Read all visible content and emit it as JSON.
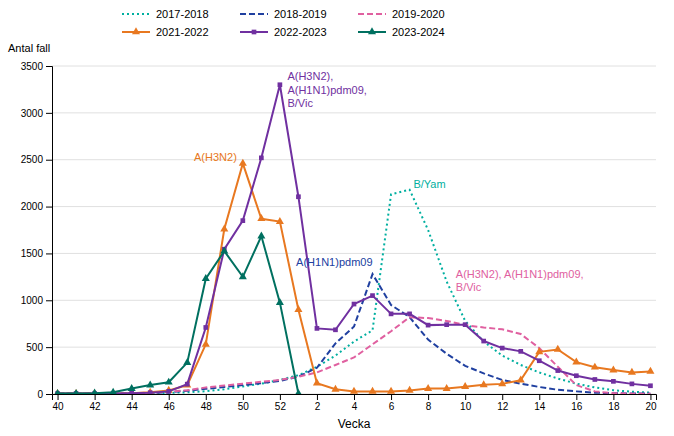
{
  "chart_data": {
    "type": "line",
    "xlabel": "Vecka",
    "ylabel": "Antal fall",
    "categories": [
      "40",
      null,
      "42",
      null,
      "44",
      null,
      "46",
      null,
      "48",
      null,
      "50",
      null,
      "52",
      null,
      "2",
      null,
      "4",
      null,
      "6",
      null,
      "8",
      null,
      "10",
      null,
      "12",
      null,
      "14",
      null,
      "16",
      null,
      "18",
      null,
      "20"
    ],
    "ylim": [
      0,
      3500
    ],
    "yticks": [
      0,
      500,
      1000,
      1500,
      2000,
      2500,
      3000,
      3500
    ],
    "grid": true,
    "legend": "top",
    "series": [
      {
        "name": "2017-2018",
        "color": "#00AFA0",
        "line_style": "dotted",
        "values": [
          5,
          5,
          5,
          5,
          8,
          10,
          12,
          18,
          30,
          50,
          80,
          110,
          150,
          200,
          290,
          410,
          560,
          680,
          2130,
          2180,
          1750,
          1200,
          780,
          560,
          410,
          310,
          230,
          165,
          110,
          70,
          40,
          25,
          15
        ]
      },
      {
        "name": "2018-2019",
        "color": "#2040A0",
        "line_style": "dashed",
        "values": [
          5,
          5,
          5,
          5,
          8,
          12,
          18,
          35,
          55,
          75,
          95,
          115,
          140,
          185,
          280,
          540,
          720,
          1280,
          950,
          820,
          580,
          430,
          300,
          220,
          150,
          110,
          75,
          45,
          28,
          14,
          8,
          5,
          4
        ]
      },
      {
        "name": "2019-2020",
        "color": "#E060A0",
        "line_style": "dashed",
        "values": [
          5,
          5,
          5,
          5,
          8,
          15,
          25,
          40,
          70,
          90,
          110,
          130,
          150,
          185,
          230,
          310,
          390,
          530,
          670,
          820,
          810,
          780,
          735,
          710,
          690,
          640,
          490,
          290,
          95,
          28,
          8,
          4,
          4
        ]
      },
      {
        "name": "2021-2022",
        "color": "#E87820",
        "line_style": "solid",
        "marker": "triangle",
        "values": [
          5,
          5,
          5,
          5,
          8,
          18,
          38,
          95,
          530,
          1760,
          2460,
          1870,
          1840,
          900,
          115,
          50,
          28,
          28,
          28,
          38,
          58,
          58,
          78,
          98,
          108,
          148,
          450,
          475,
          340,
          285,
          255,
          230,
          240
        ]
      },
      {
        "name": "2022-2023",
        "color": "#7030A0",
        "line_style": "solid",
        "marker": "square",
        "values": [
          5,
          5,
          5,
          5,
          8,
          14,
          28,
          105,
          710,
          1545,
          1850,
          2520,
          3300,
          2105,
          700,
          685,
          960,
          1050,
          855,
          855,
          735,
          740,
          740,
          565,
          490,
          455,
          355,
          250,
          195,
          155,
          135,
          108,
          88
        ]
      },
      {
        "name": "2023-2024",
        "color": "#007060",
        "line_style": "solid",
        "marker": "triangle",
        "values": [
          5,
          5,
          8,
          18,
          58,
          95,
          125,
          335,
          1230,
          1525,
          1250,
          1685,
          975,
          5,
          null,
          null,
          null,
          null,
          null,
          null,
          null,
          null,
          null,
          null,
          null,
          null,
          null,
          null,
          null,
          null,
          null,
          null,
          null
        ]
      }
    ],
    "annotations": [
      {
        "text": "A(H3N2)",
        "color": "#E87820"
      },
      {
        "text": "A(H3N2),\nA(H1N1)pdm09,\nB/Vic",
        "color": "#7030A0"
      },
      {
        "text": "B/Yam",
        "color": "#00AFA0"
      },
      {
        "text": "A(H1N1)pdm09",
        "color": "#2040A0"
      },
      {
        "text": "A(H3N2), A(H1N1)pdm09,\nB/Vic",
        "color": "#E060A0"
      }
    ]
  }
}
